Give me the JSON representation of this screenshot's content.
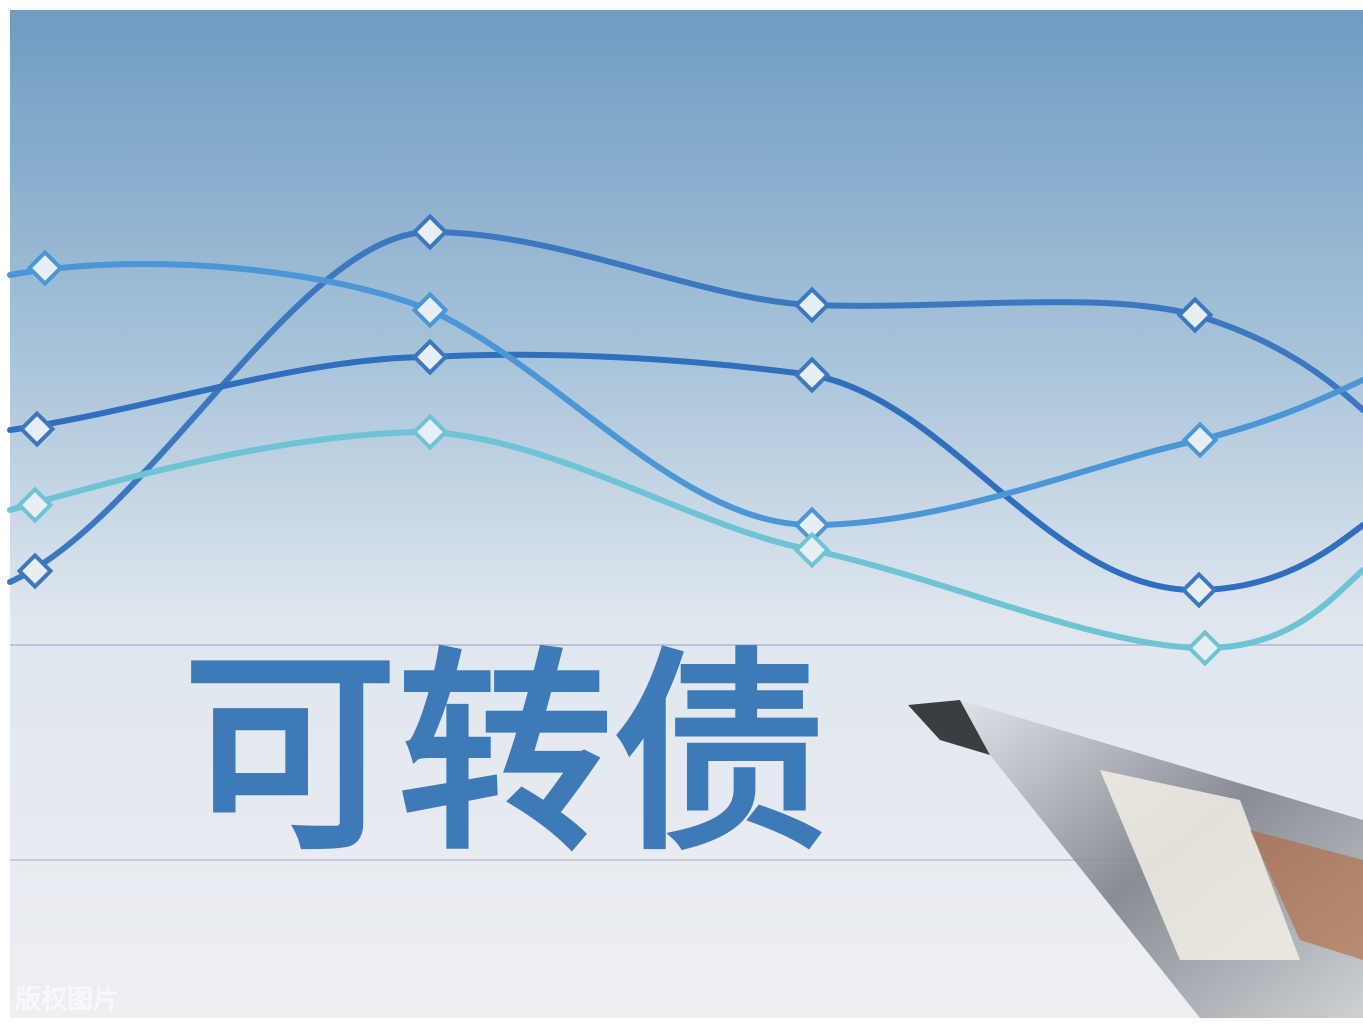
{
  "title": "可转债",
  "watermark": "版权图片"
}
